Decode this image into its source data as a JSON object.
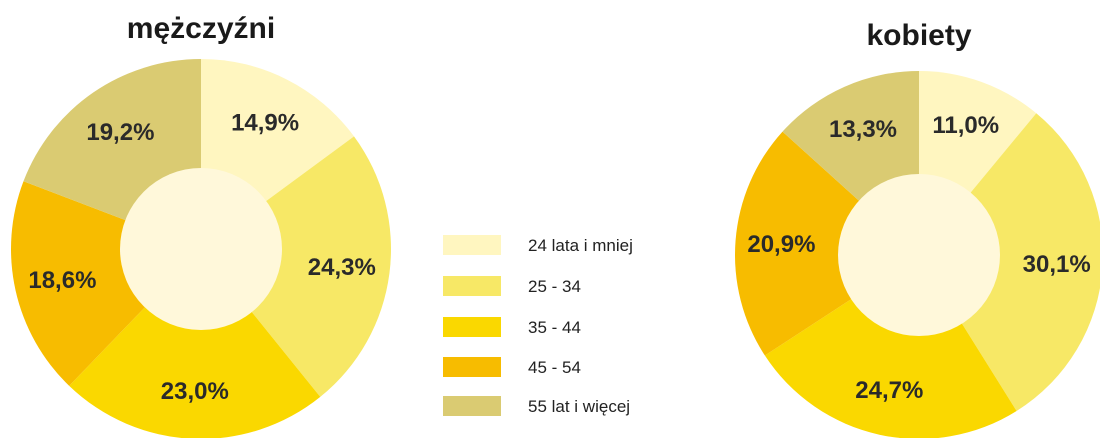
{
  "legend": {
    "items": [
      {
        "label": "24 lata i mniej",
        "color": "#FFF6C0"
      },
      {
        "label": "25 - 34",
        "color": "#F7E866"
      },
      {
        "label": "35 - 44",
        "color": "#FAD800"
      },
      {
        "label": "45 - 54",
        "color": "#F7BC00"
      },
      {
        "label": "55 lat i więcej",
        "color": "#DACB72"
      }
    ]
  },
  "hole_color": "#FFF8DA",
  "chart_data": [
    {
      "type": "pie",
      "title": "mężczyźni",
      "categories": [
        "24 lata i mniej",
        "25 - 34",
        "35 - 44",
        "45 - 54",
        "55 lat i więcej"
      ],
      "values": [
        14.9,
        24.3,
        23.0,
        18.6,
        19.2
      ],
      "labels": [
        "14,9%",
        "24,3%",
        "23,0%",
        "18,6%",
        "19,2%"
      ]
    },
    {
      "type": "pie",
      "title": "kobiety",
      "categories": [
        "24 lata i mniej",
        "25 - 34",
        "35 - 44",
        "45 - 54",
        "55 lat i więcej"
      ],
      "values": [
        11.0,
        30.1,
        24.7,
        20.9,
        13.3
      ],
      "labels": [
        "11,0%",
        "30,1%",
        "24,7%",
        "20,9%",
        "13,3%"
      ]
    }
  ]
}
